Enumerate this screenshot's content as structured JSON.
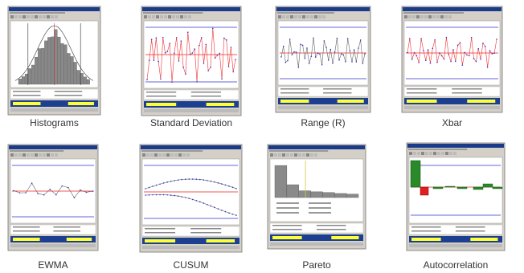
{
  "thumbnails": [
    {
      "caption": "Histograms"
    },
    {
      "caption": "Standard Deviation"
    },
    {
      "caption": "Range (R)"
    },
    {
      "caption": "Xbar"
    },
    {
      "caption": "EWMA"
    },
    {
      "caption": "CUSUM"
    },
    {
      "caption": "Pareto"
    },
    {
      "caption": "Autocorrelation"
    }
  ]
}
